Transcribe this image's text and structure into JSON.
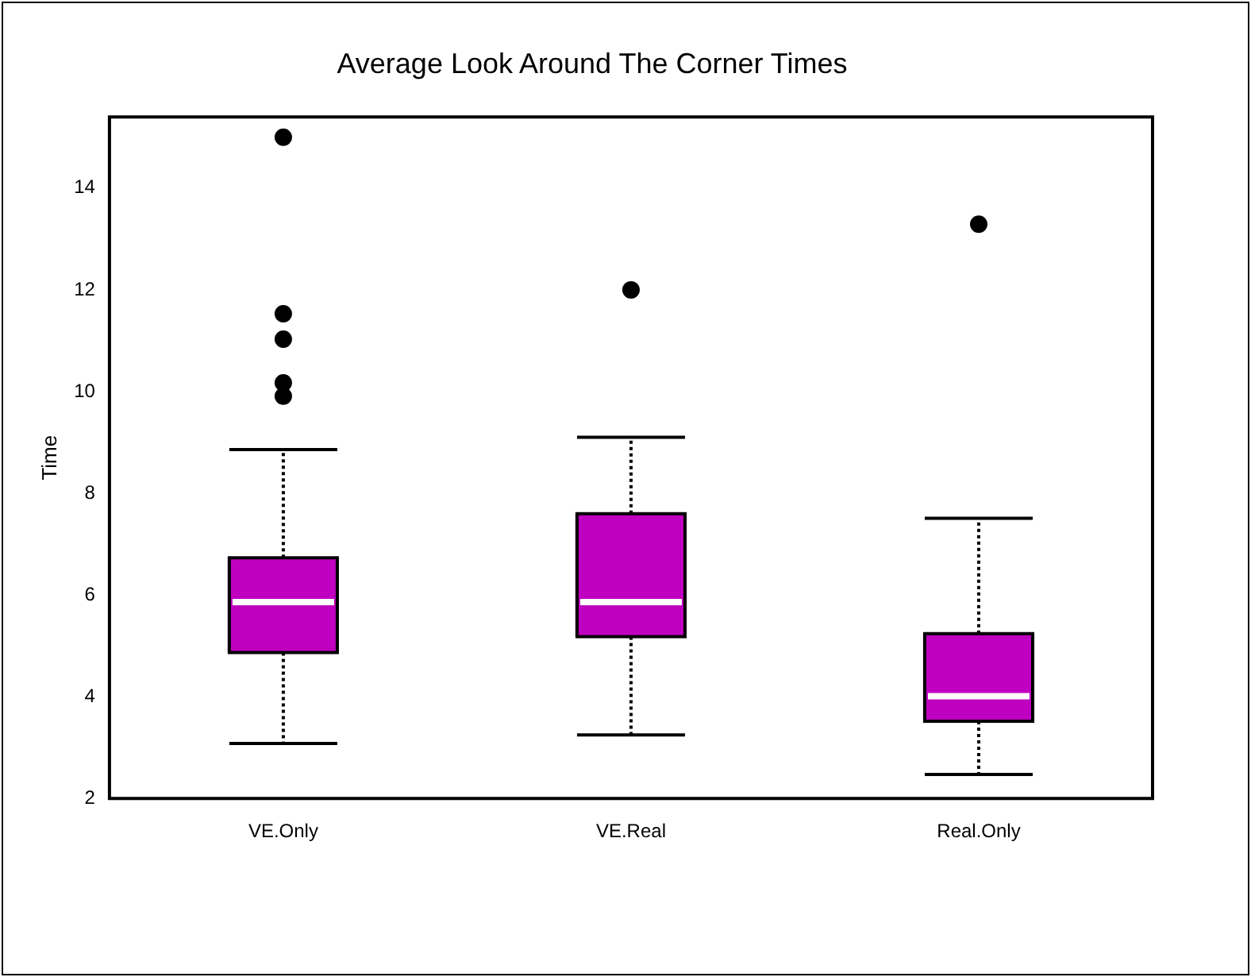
{
  "chart_data": {
    "type": "box",
    "title": "Average Look Around The Corner Times",
    "ylabel": "Time",
    "categories": [
      "VE.Only",
      "VE.Real",
      "Real.Only"
    ],
    "color": "#c000c0",
    "boxes": [
      {
        "low": 3.08,
        "q1": 4.87,
        "median": 5.86,
        "q3": 6.73,
        "high": 8.86
      },
      {
        "low": 3.25,
        "q1": 5.18,
        "median": 5.86,
        "q3": 7.6,
        "high": 9.1
      },
      {
        "low": 2.47,
        "q1": 3.52,
        "median": 4.01,
        "q3": 5.24,
        "high": 7.51
      }
    ],
    "series": [
      {
        "type": "scatter",
        "color": "#000000",
        "x": [
          "VE.Only",
          "VE.Only",
          "VE.Only",
          "VE.Only",
          "VE.Only",
          "VE.Real",
          "Real.Only"
        ],
        "values": [
          9.91,
          10.17,
          11.03,
          11.53,
          15.0,
          12.0,
          13.29
        ]
      }
    ],
    "marker": "circle",
    "ylim": [
      2,
      15.4
    ],
    "yticks": [
      2,
      4,
      6,
      8,
      10,
      12,
      14
    ]
  }
}
